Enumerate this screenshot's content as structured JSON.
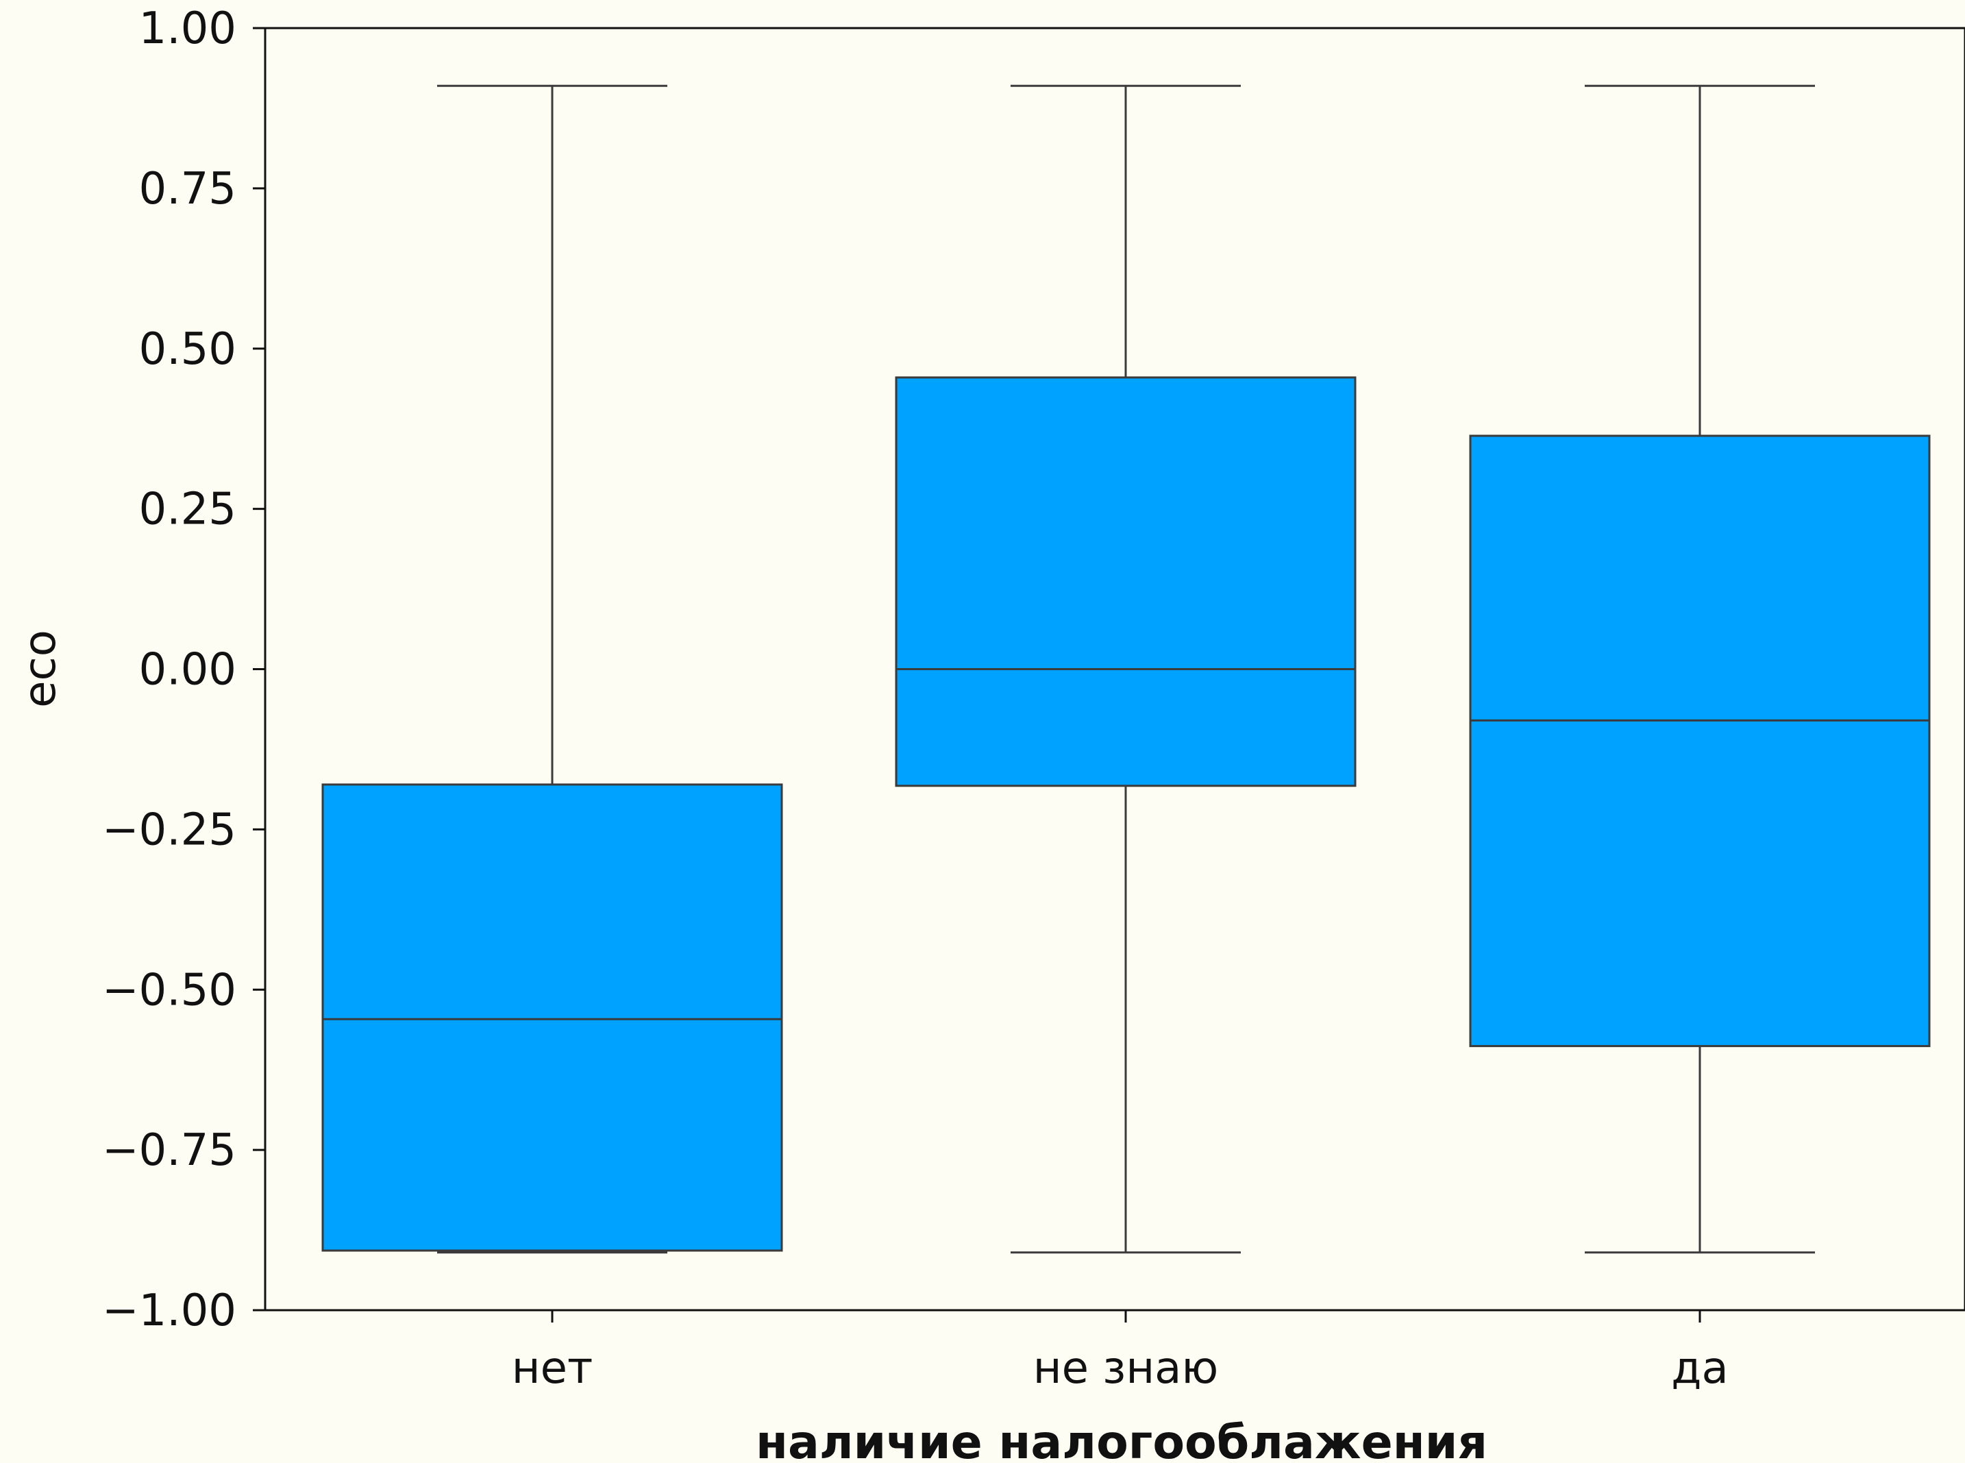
{
  "chart_data": {
    "type": "box",
    "xlabel": "наличие налогооблажения",
    "ylabel": "eco",
    "ylim": [
      -1.0,
      1.0
    ],
    "y_ticks": [
      "1.00",
      "0.75",
      "0.50",
      "0.25",
      "0.00",
      "−0.25",
      "−0.50",
      "−0.75",
      "−1.00"
    ],
    "y_tick_values": [
      1.0,
      0.75,
      0.5,
      0.25,
      0.0,
      -0.25,
      -0.5,
      -0.75,
      -1.0
    ],
    "categories": [
      "нет",
      "не знаю",
      "да"
    ],
    "boxes": [
      {
        "category": "нет",
        "whisker_low": -0.91,
        "q1": -0.907,
        "median": -0.546,
        "q3": -0.18,
        "whisker_high": 0.91
      },
      {
        "category": "не знаю",
        "whisker_low": -0.91,
        "q1": -0.182,
        "median": 0.0,
        "q3": 0.455,
        "whisker_high": 0.91
      },
      {
        "category": "да",
        "whisker_low": -0.91,
        "q1": -0.588,
        "median": -0.08,
        "q3": 0.364,
        "whisker_high": 0.91
      }
    ],
    "grid": false,
    "colors": {
      "box_fill": "#00a2ff",
      "line": "#3b3b3b",
      "background": "#fdfdf3"
    }
  }
}
